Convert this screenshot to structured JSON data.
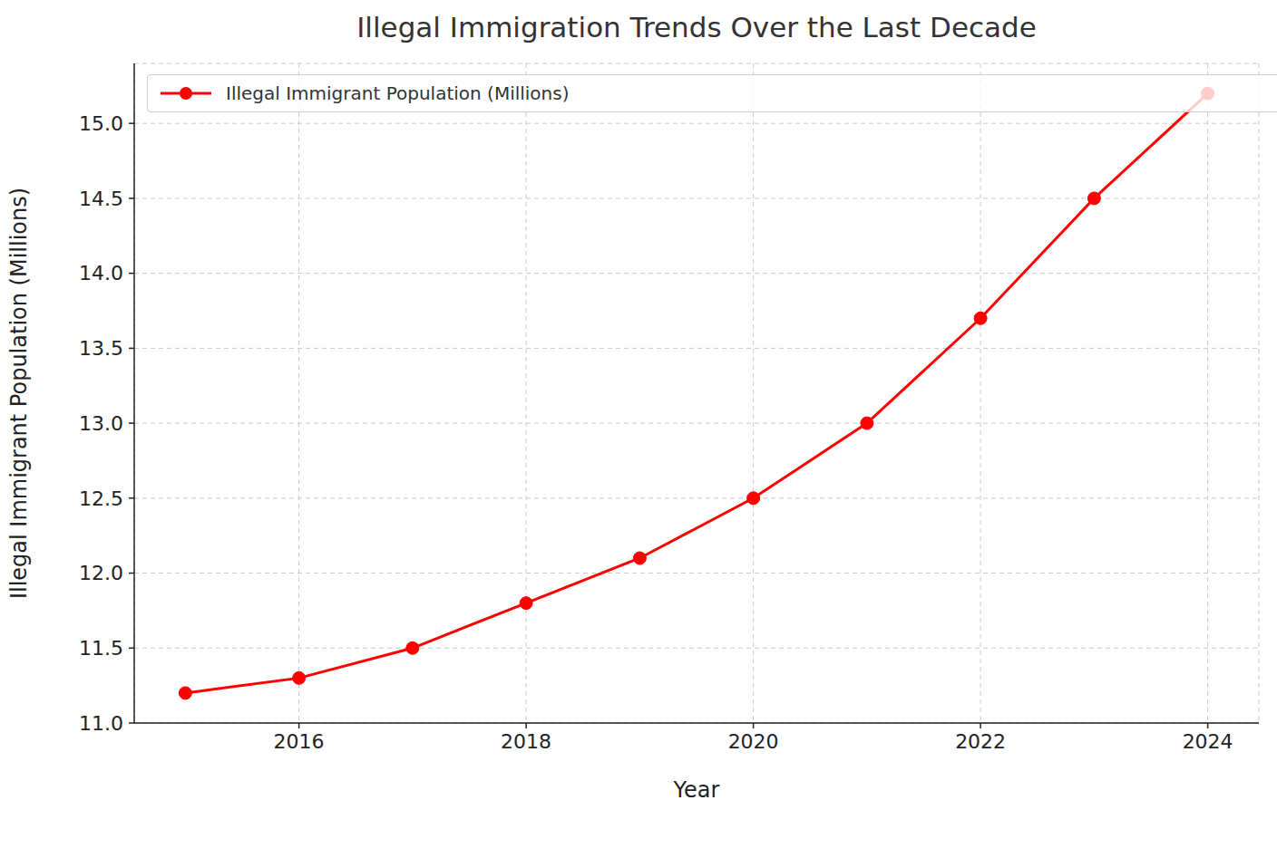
{
  "chart_data": {
    "type": "line",
    "title": "Illegal Immigration Trends Over the Last Decade",
    "x_label": "Year",
    "y_label": "Illegal Immigrant Population (Millions)",
    "x": [
      2015,
      2016,
      2017,
      2018,
      2019,
      2020,
      2021,
      2022,
      2023,
      2024
    ],
    "series": [
      {
        "name": "Illegal Immigrant Population (Millions)",
        "color": "#ff0000",
        "marker": "circle",
        "line_style": "solid",
        "values": [
          11.2,
          11.3,
          11.5,
          11.8,
          12.1,
          12.5,
          13.0,
          13.7,
          14.5,
          15.2
        ]
      }
    ],
    "xlim": [
      2014.55,
      2024.45
    ],
    "xticks": [
      2016,
      2018,
      2020,
      2022,
      2024
    ],
    "ylim": [
      11.0,
      15.4
    ],
    "yticks": [
      {
        "value": 11.0,
        "label": "11.0"
      },
      {
        "value": 11.5,
        "label": "11.5"
      },
      {
        "value": 12.0,
        "label": "12.0"
      },
      {
        "value": 12.5,
        "label": "12.5"
      },
      {
        "value": 13.0,
        "label": "13.0"
      },
      {
        "value": 13.5,
        "label": "13.5"
      },
      {
        "value": 14.0,
        "label": "14.0"
      },
      {
        "value": 14.5,
        "label": "14.5"
      },
      {
        "value": 15.0,
        "label": "15.0"
      }
    ],
    "grid": true,
    "legend": "upper left"
  }
}
